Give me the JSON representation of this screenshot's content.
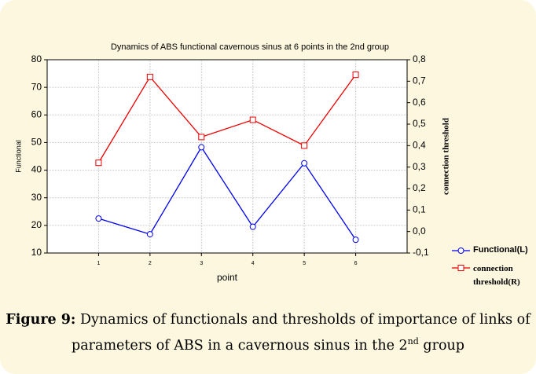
{
  "chart_data": {
    "type": "line",
    "title": "Dynamics of ABS functional cavernous sinus at 6 points in the 2nd group",
    "x_label": "point",
    "y_label": "Functional",
    "y2_label": "connection threshold",
    "x": [
      1,
      2,
      3,
      4,
      5,
      6
    ],
    "xlim": [
      0,
      7
    ],
    "xticks": [
      1,
      2,
      3,
      4,
      5,
      6
    ],
    "ylim": [
      10,
      80
    ],
    "yticks": [
      10,
      20,
      30,
      40,
      50,
      60,
      70,
      80
    ],
    "y2lim": [
      -0.1,
      0.8
    ],
    "y2ticks": [
      {
        "value": -0.1,
        "label": "-0,1"
      },
      {
        "value": 0,
        "label": "0,0"
      },
      {
        "value": 0.1,
        "label": "0,1"
      },
      {
        "value": 0.2,
        "label": "0,2"
      },
      {
        "value": 0.3,
        "label": "0,3"
      },
      {
        "value": 0.4,
        "label": "0,4"
      },
      {
        "value": 0.5,
        "label": "0,5"
      },
      {
        "value": 0.6,
        "label": "0,6"
      },
      {
        "value": 0.7,
        "label": "0,7"
      },
      {
        "value": 0.8,
        "label": "0,8"
      }
    ],
    "grid": true,
    "series": [
      {
        "name": "Functional(L)",
        "color": "#0000ee",
        "marker": "circle",
        "values": [
          22.5,
          16.8,
          48.3,
          19.5,
          42.5,
          14.8
        ]
      },
      {
        "name": "connection threshold(R)",
        "color": "#ee0000",
        "marker": "square",
        "axis": "y2",
        "values": [
          0.32,
          0.72,
          0.44,
          0.52,
          0.4,
          0.73
        ]
      }
    ]
  },
  "caption": {
    "label": "Figure 9:",
    "text": "Dynamics of functionals and thresholds of importance of links of parameters of ABS in a cavernous sinus in the 2",
    "sup": "nd",
    "text_end": "group"
  }
}
